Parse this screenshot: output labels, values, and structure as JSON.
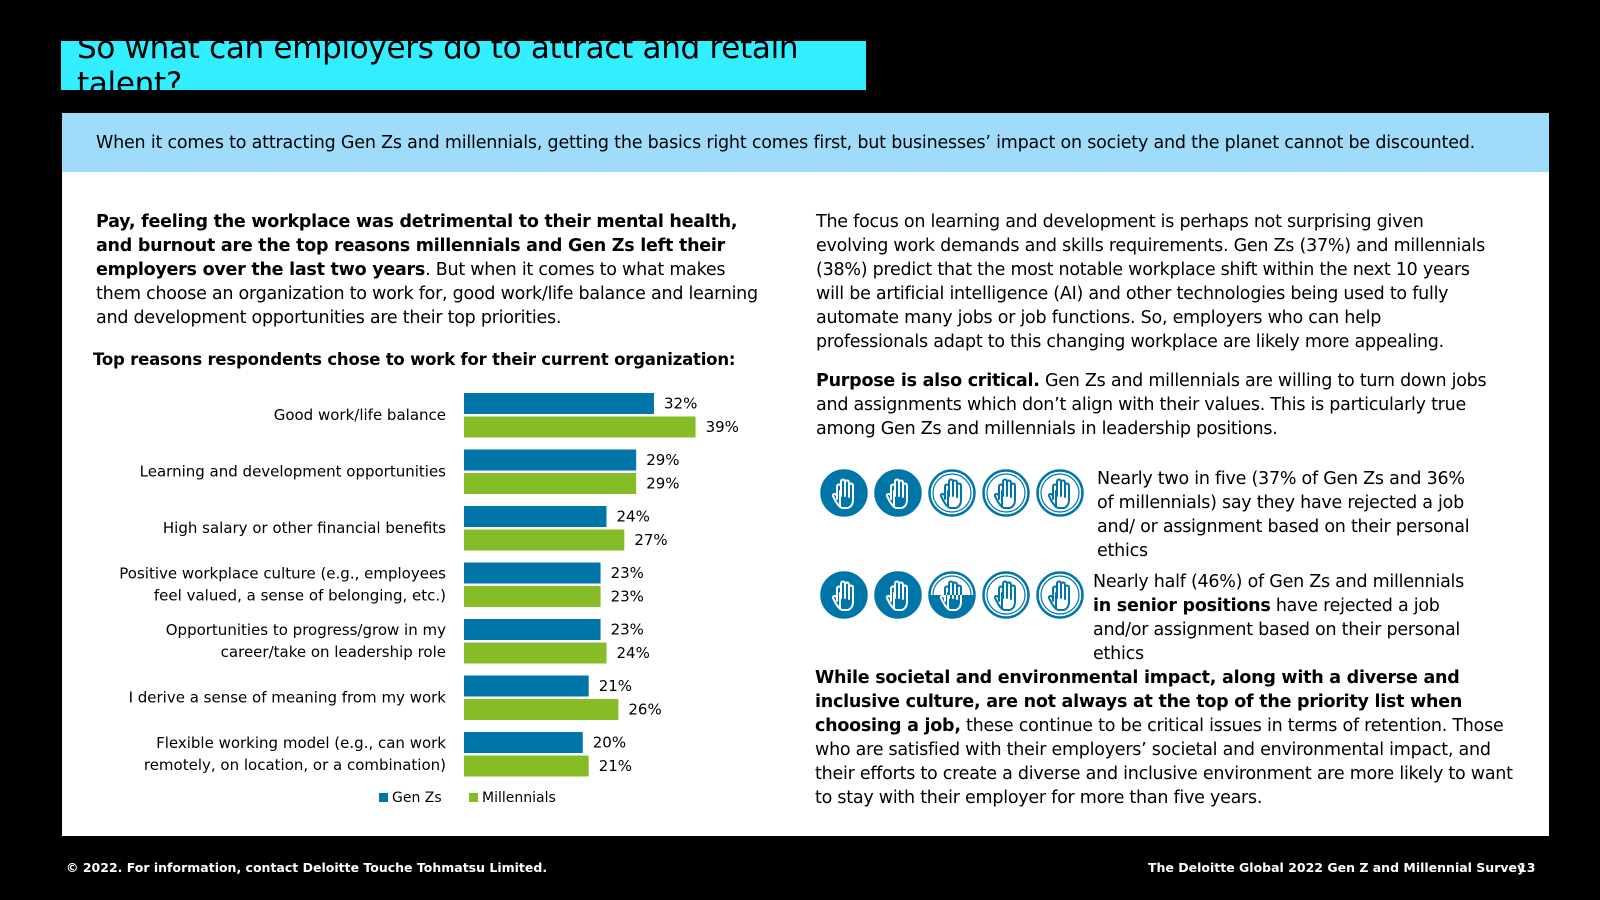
{
  "title": "So what can employers do to attract and retain talent?",
  "banner": "When it comes to attracting Gen Zs and millennials, getting the basics right comes first, but businesses’ impact on society and the planet cannot be discounted.",
  "left_intro": {
    "bold": "Pay, feeling the workplace was detrimental to their mental health, and burnout are the top reasons millennials and Gen Zs left their employers over the last two years",
    "rest": ". But when it comes to what makes them choose an organization to work for, good work/life balance and learning and development opportunities are their top priorities."
  },
  "chart_data": {
    "type": "bar",
    "orientation": "horizontal",
    "title": "Top reasons respondents chose to work for their current organization:",
    "categories": [
      "Good work/life balance",
      "Learning and development opportunities",
      "High salary or other financial benefits",
      "Positive workplace culture (e.g., employees feel valued, a sense of belonging, etc.)",
      "Opportunities to progress/grow in my career/take on leadership role",
      "I derive a sense of meaning from my work",
      "Flexible working model (e.g., can work remotely, on location, or a combination)"
    ],
    "category_lines": [
      [
        "Good work/life balance"
      ],
      [
        "Learning and development opportunities"
      ],
      [
        "High salary or other financial benefits"
      ],
      [
        "Positive workplace culture (e.g., employees",
        "feel valued, a sense of belonging, etc.)"
      ],
      [
        "Opportunities to progress/grow in my",
        "career/take on leadership role"
      ],
      [
        "I derive a sense of meaning from my work"
      ],
      [
        "Flexible working model (e.g., can work",
        "remotely, on location, or a combination)"
      ]
    ],
    "series": [
      {
        "name": "Gen Zs",
        "values": [
          32,
          29,
          24,
          23,
          23,
          21,
          20
        ],
        "color": "#0076a8"
      },
      {
        "name": "Millennials",
        "values": [
          39,
          29,
          27,
          23,
          24,
          26,
          21
        ],
        "color": "#86bc25"
      }
    ],
    "value_suffix": "%",
    "legend": "bottom",
    "grid": false
  },
  "right": {
    "p1": "The focus on learning and development is perhaps not surprising given evolving work demands and skills requirements. Gen Zs (37%) and millennials (38%) predict that the most notable workplace shift within the next 10 years will be artificial intelligence (AI) and other technologies being used to fully automate many jobs or job functions. So, employers who can help professionals adapt to this changing workplace are likely more appealing.",
    "p2_bold": "Purpose is also critical.",
    "p2_rest": " Gen Zs and millennials are willing to turn down jobs and assignments which don’t align with their values. This is particularly true among Gen Zs and millennials in leadership positions.",
    "stat1": "Nearly two in five (37% of Gen Zs and 36% of millennials) say they have rejected a job and/ or assignment based on their personal ethics",
    "stat1_fill": [
      1,
      1,
      0,
      0,
      0
    ],
    "stat2_a": "Nearly half (46%) of Gen Zs and millennials ",
    "stat2_bold": "in senior positions",
    "stat2_b": " have rejected a job and/or assignment based on their personal ethics",
    "stat2_fill": [
      1,
      1,
      0.5,
      0,
      0
    ],
    "p3_bold": "While societal and environmental impact, along with a diverse and inclusive culture, are not always at the top of the priority list when choosing a job,",
    "p3_rest": " these continue to be critical issues in terms of retention. Those who are satisfied with their employers’ societal and environmental impact, and their efforts to create a diverse and inclusive environment are more likely to want to stay with their employer for more than five years."
  },
  "footer": {
    "copyright": "© 2022. For information, contact Deloitte Touche Tohmatsu Limited.",
    "survey": "The Deloitte Global 2022 Gen Z and Millennial Survey",
    "page": "13"
  },
  "icons": {
    "name": "raised-hand-icon",
    "color": "#0076a8"
  }
}
